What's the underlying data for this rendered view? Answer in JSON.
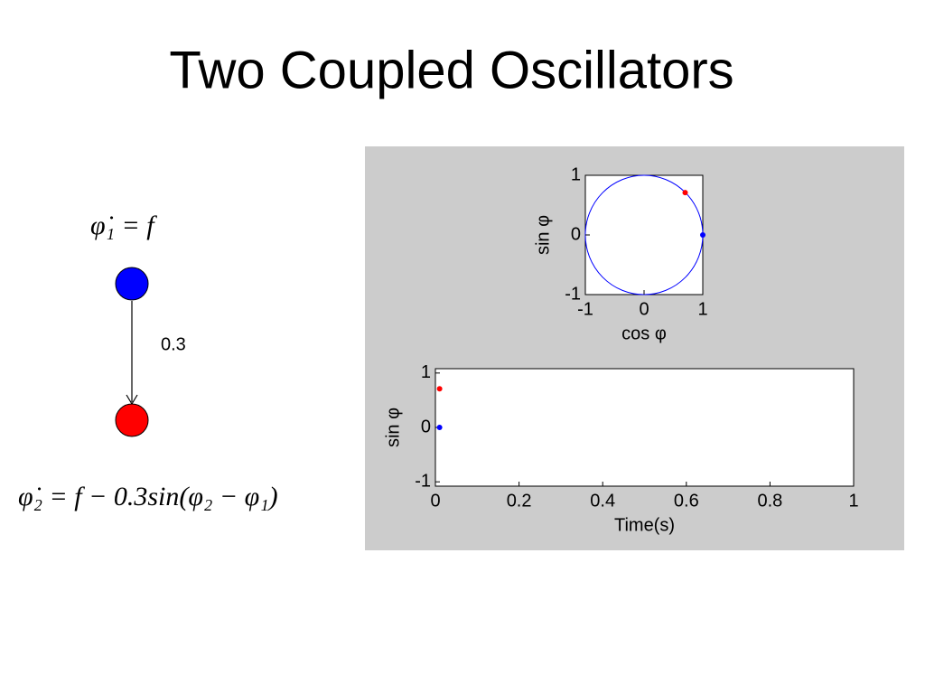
{
  "title": "Two Coupled Oscillators",
  "diagram": {
    "equation_1": "φ̇₁ = f",
    "coupling": "0.3",
    "equation_2": "φ̇₂ = f − 0.3sin(φ₂ − φ₁)"
  },
  "chart_data": [
    {
      "type": "scatter",
      "xlabel": "cos φ",
      "ylabel": "sin φ",
      "xlim": [
        -1,
        1
      ],
      "ylim": [
        -1,
        1
      ],
      "xticks": [
        -1,
        0,
        1
      ],
      "yticks": [
        -1,
        0,
        1
      ],
      "series": [
        {
          "color": "#ff0000",
          "x": [
            0.7
          ],
          "values": [
            0.71
          ]
        },
        {
          "color": "#0000ff",
          "x": [
            1
          ],
          "values": [
            0
          ]
        }
      ]
    },
    {
      "type": "scatter",
      "xlabel": "Time(s)",
      "ylabel": "sin φ",
      "xlim": [
        0,
        1
      ],
      "ylim": [
        -1.08,
        1.08
      ],
      "xticks": [
        0,
        0.2,
        0.4,
        0.6,
        0.8,
        1
      ],
      "yticks": [
        -1,
        0,
        1
      ],
      "series": [
        {
          "color": "#ff0000",
          "x": [
            0.01
          ],
          "values": [
            0.71
          ]
        },
        {
          "color": "#0000ff",
          "x": [
            0.01
          ],
          "values": [
            0
          ]
        }
      ]
    }
  ]
}
